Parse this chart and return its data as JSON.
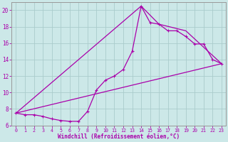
{
  "xlabel": "Windchill (Refroidissement éolien,°C)",
  "bg_color": "#cce8e8",
  "grid_color": "#aacccc",
  "line_color": "#aa00aa",
  "spine_color": "#999999",
  "xlim": [
    -0.5,
    23.5
  ],
  "ylim": [
    6,
    21
  ],
  "xticks": [
    0,
    1,
    2,
    3,
    4,
    5,
    6,
    7,
    8,
    9,
    10,
    11,
    12,
    13,
    14,
    15,
    16,
    17,
    18,
    19,
    20,
    21,
    22,
    23
  ],
  "yticks": [
    6,
    8,
    10,
    12,
    14,
    16,
    18,
    20
  ],
  "line1_x": [
    0,
    1,
    2,
    3,
    4,
    5,
    6,
    7,
    8,
    9,
    10,
    11,
    12,
    13,
    14,
    15,
    16,
    17,
    18,
    19,
    20,
    21,
    22,
    23
  ],
  "line1_y": [
    7.5,
    7.3,
    7.3,
    7.1,
    6.8,
    6.6,
    6.5,
    6.5,
    7.7,
    10.3,
    11.5,
    12.0,
    12.8,
    15.0,
    20.5,
    18.5,
    18.3,
    17.5,
    17.5,
    16.8,
    15.9,
    15.9,
    14.0,
    13.5
  ],
  "line2_x": [
    0,
    23
  ],
  "line2_y": [
    7.5,
    13.5
  ],
  "line3_x": [
    0,
    14,
    16,
    19,
    23
  ],
  "line3_y": [
    7.5,
    20.5,
    18.3,
    17.5,
    13.5
  ]
}
